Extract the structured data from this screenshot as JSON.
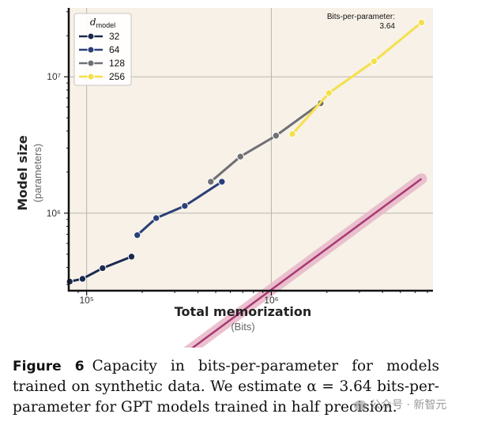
{
  "chart_data": {
    "type": "line",
    "xscale": "log",
    "yscale": "log",
    "xlim": [
      80000,
      7500000
    ],
    "ylim": [
      270000,
      32000000
    ],
    "xlabel": "Total memorization",
    "xlabel_sub": "(Bits)",
    "ylabel": "Model size",
    "ylabel_sub": "(parameters)",
    "xticks": [
      {
        "value": 100000,
        "label": "10⁵"
      },
      {
        "value": 1000000,
        "label": "10⁶"
      }
    ],
    "yticks": [
      {
        "value": 1000000,
        "label": "10⁶"
      },
      {
        "value": 10000000,
        "label": "10⁷"
      }
    ],
    "grid": true,
    "legend_title": "d",
    "legend_title_sub": "model",
    "legend_position": "top-left",
    "annotation": [
      "Bits-per-parameter:",
      "3.64"
    ],
    "series": [
      {
        "name": "32",
        "color": "#1a2a4f",
        "x": [
          81000,
          95000,
          122000,
          175000
        ],
        "y": [
          315000,
          330000,
          395000,
          480000
        ]
      },
      {
        "name": "64",
        "color": "#2b3f78",
        "x": [
          188000,
          238000,
          340000,
          540000
        ],
        "y": [
          690000,
          920000,
          1130000,
          1700000
        ]
      },
      {
        "name": "128",
        "color": "#6f6f76",
        "x": [
          470000,
          680000,
          1060000,
          1850000
        ],
        "y": [
          1700000,
          2600000,
          3700000,
          6400000
        ]
      },
      {
        "name": "256",
        "color": "#f4e04d",
        "x": [
          1300000,
          2050000,
          3600000,
          6500000
        ],
        "y": [
          3800000,
          7600000,
          13000000,
          25000000
        ]
      }
    ],
    "fit": {
      "bits_per_parameter": 3.64,
      "color": "#a83a72",
      "band_color": "#e8b6c8",
      "x_range": [
        190000,
        6500000
      ]
    }
  },
  "caption": {
    "label": "Figure 6",
    "text": "Capacity in bits-per-parameter for models trained on synthetic data. We estimate α = 3.64 bits-per-parameter for GPT models trained in half precision."
  },
  "watermark": "公众号 · 新智元"
}
